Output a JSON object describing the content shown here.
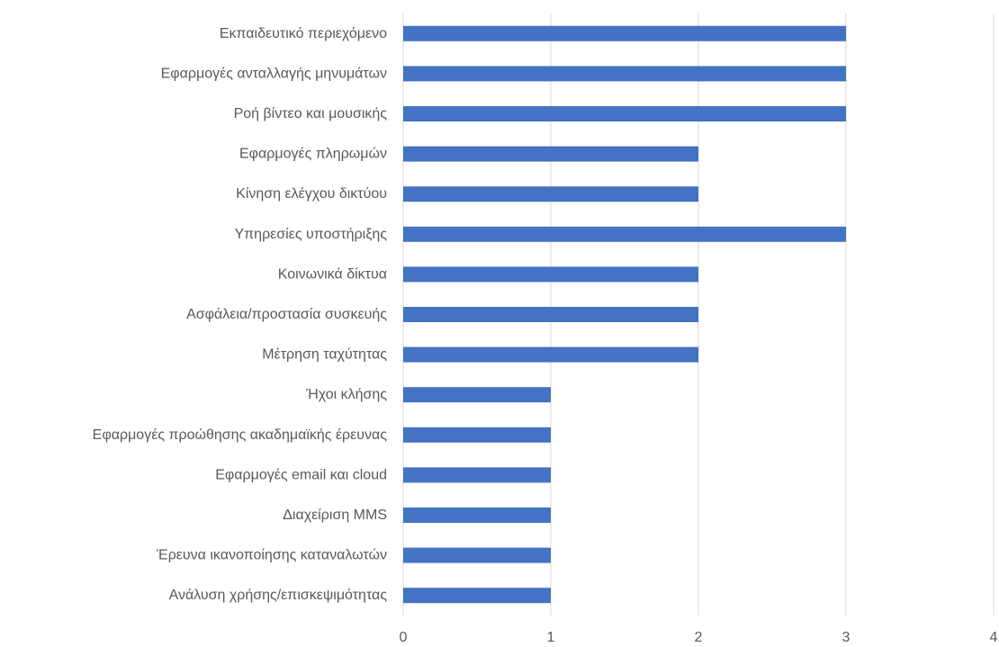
{
  "chart_data": {
    "type": "bar",
    "orientation": "horizontal",
    "categories": [
      "Εκπαιδευτικό περιεχόμενο",
      "Εφαρμογές ανταλλαγής μηνυμάτων",
      "Ροή βίντεο και μουσικής",
      "Εφαρμογές πληρωμών",
      "Κίνηση ελέγχου δικτύου",
      "Υπηρεσίες υποστήριξης",
      "Κοινωνικά δίκτυα",
      "Ασφάλεια/προστασία συσκευής",
      "Μέτρηση ταχύτητας",
      "Ήχοι κλήσης",
      "Εφαρμογές προώθησης ακαδημαϊκής έρευνας",
      "Εφαρμογές email και cloud",
      "Διαχείριση MMS",
      "Έρευνα ικανοποίησης καταναλωτών",
      "Ανάλυση χρήσης/επισκεψιμότητας"
    ],
    "values": [
      3,
      3,
      3,
      2,
      2,
      3,
      2,
      2,
      2,
      1,
      1,
      1,
      1,
      1,
      1
    ],
    "xlim": [
      0,
      4
    ],
    "xticks": [
      "0",
      "1",
      "2",
      "3",
      "4"
    ],
    "grid": "vertical",
    "legend": "none",
    "title": "",
    "xlabel": "",
    "ylabel": "",
    "colors": {
      "bar": "#4472C4",
      "grid": "#D9D9D9",
      "text": "#595959"
    }
  }
}
